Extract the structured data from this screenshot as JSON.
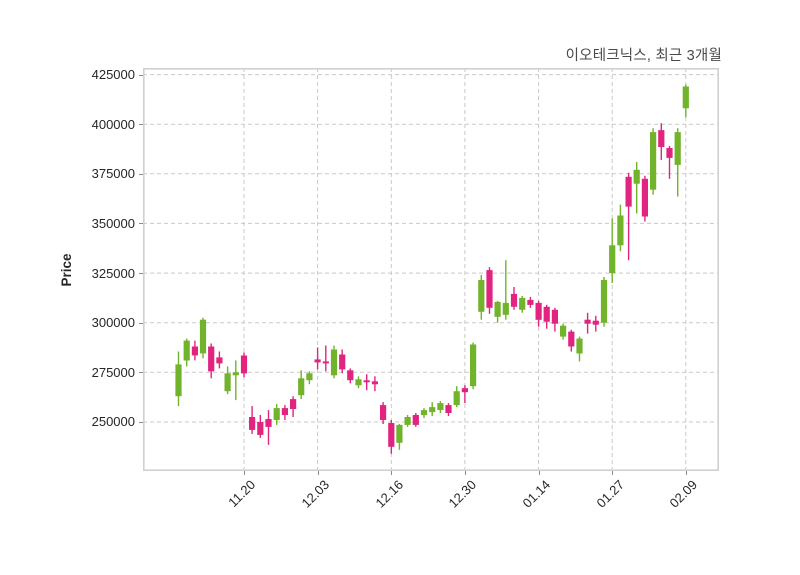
{
  "header": {
    "title": "이오테크닉스, 최근 3개월"
  },
  "colors": {
    "up": "#72b32c",
    "down": "#e0247f",
    "grid": "#c9c9c9",
    "axis_border": "#d0d0d0",
    "tick_mark": "#8a8a8a",
    "tick_text": "#262626",
    "title_text": "#4a4a4a",
    "background": "#ffffff"
  },
  "chart_data": {
    "type": "candlestick",
    "title": "이오테크닉스, 최근 3개월",
    "xlabel": "",
    "ylabel": "Price",
    "ylim": [
      225300,
      428300
    ],
    "grid": true,
    "legend": "none",
    "y_ticks": [
      {
        "label": "250000",
        "value": 250000
      },
      {
        "label": "275000",
        "value": 275000
      },
      {
        "label": "300000",
        "value": 300000
      },
      {
        "label": "325000",
        "value": 325000
      },
      {
        "label": "350000",
        "value": 350000
      },
      {
        "label": "375000",
        "value": 375000
      },
      {
        "label": "400000",
        "value": 400000
      },
      {
        "label": "425000",
        "value": 425000
      }
    ],
    "x_ticks": [
      {
        "label": "11.20",
        "index": 8
      },
      {
        "label": "12.03",
        "index": 17
      },
      {
        "label": "12.16",
        "index": 26
      },
      {
        "label": "12.30",
        "index": 35
      },
      {
        "label": "01.14",
        "index": 44
      },
      {
        "label": "01.27",
        "index": 53
      },
      {
        "label": "02.09",
        "index": 62
      }
    ],
    "candles_format": [
      "open",
      "high",
      "low",
      "close"
    ],
    "candles": [
      [
        263000,
        285500,
        258000,
        279000
      ],
      [
        281000,
        292000,
        278000,
        291000
      ],
      [
        288000,
        291000,
        281000,
        283500
      ],
      [
        284500,
        302500,
        282000,
        301500
      ],
      [
        288000,
        289500,
        272000,
        275500
      ],
      [
        282500,
        285500,
        277000,
        279500
      ],
      [
        265500,
        278000,
        264000,
        274500
      ],
      [
        273500,
        281000,
        261000,
        275000
      ],
      [
        283500,
        285000,
        272500,
        274500
      ],
      [
        252500,
        258000,
        244000,
        246000
      ],
      [
        250000,
        253500,
        242000,
        243500
      ],
      [
        251500,
        256000,
        238500,
        247500
      ],
      [
        251000,
        259000,
        248500,
        257000
      ],
      [
        257000,
        258500,
        251000,
        253500
      ],
      [
        261500,
        263000,
        252500,
        256500
      ],
      [
        263500,
        276000,
        261500,
        272000
      ],
      [
        271000,
        275500,
        269000,
        274500
      ],
      [
        281500,
        287500,
        276500,
        280000
      ],
      [
        280500,
        288500,
        275500,
        279500
      ],
      [
        273500,
        288500,
        272000,
        286500
      ],
      [
        284000,
        286500,
        274500,
        276500
      ],
      [
        276000,
        277000,
        269500,
        271000
      ],
      [
        268500,
        273000,
        267000,
        271500
      ],
      [
        271000,
        274000,
        266000,
        270000
      ],
      [
        270500,
        273000,
        265500,
        269000
      ],
      [
        258500,
        260000,
        249000,
        251000
      ],
      [
        249500,
        251000,
        234000,
        237500
      ],
      [
        239500,
        249000,
        236000,
        248500
      ],
      [
        248500,
        253500,
        247500,
        252500
      ],
      [
        253500,
        254500,
        247500,
        248500
      ],
      [
        253500,
        257000,
        252000,
        256000
      ],
      [
        255000,
        260000,
        253000,
        257500
      ],
      [
        256000,
        260500,
        254500,
        259500
      ],
      [
        258500,
        259500,
        253000,
        254500
      ],
      [
        258500,
        268000,
        257500,
        265500
      ],
      [
        267000,
        268500,
        259500,
        265000
      ],
      [
        268000,
        290000,
        266500,
        289000
      ],
      [
        305500,
        324000,
        301500,
        321500
      ],
      [
        326500,
        328000,
        304500,
        307500
      ],
      [
        303000,
        311000,
        300000,
        310500
      ],
      [
        304000,
        331500,
        301500,
        310000
      ],
      [
        314500,
        318000,
        306500,
        308000
      ],
      [
        306500,
        313500,
        305000,
        312500
      ],
      [
        311500,
        313000,
        307500,
        309000
      ],
      [
        310000,
        311000,
        298000,
        301500
      ],
      [
        308000,
        309000,
        297000,
        300500
      ],
      [
        306500,
        307500,
        295500,
        299500
      ],
      [
        293000,
        299500,
        291500,
        298500
      ],
      [
        295500,
        296500,
        285500,
        288000
      ],
      [
        284500,
        293000,
        280500,
        292000
      ],
      [
        301500,
        305000,
        294500,
        299500
      ],
      [
        301000,
        303500,
        295500,
        299000
      ],
      [
        300000,
        323000,
        298000,
        321500
      ],
      [
        325000,
        352500,
        320000,
        339000
      ],
      [
        339000,
        359500,
        336000,
        354000
      ],
      [
        373500,
        375500,
        331500,
        358500
      ],
      [
        370000,
        381000,
        355000,
        377000
      ],
      [
        372500,
        374000,
        351000,
        353500
      ],
      [
        367000,
        398000,
        364500,
        396000
      ],
      [
        397000,
        400500,
        382000,
        388500
      ],
      [
        388000,
        389000,
        372500,
        383000
      ],
      [
        379500,
        398000,
        363500,
        396000
      ],
      [
        408000,
        420000,
        403500,
        419000
      ]
    ]
  }
}
